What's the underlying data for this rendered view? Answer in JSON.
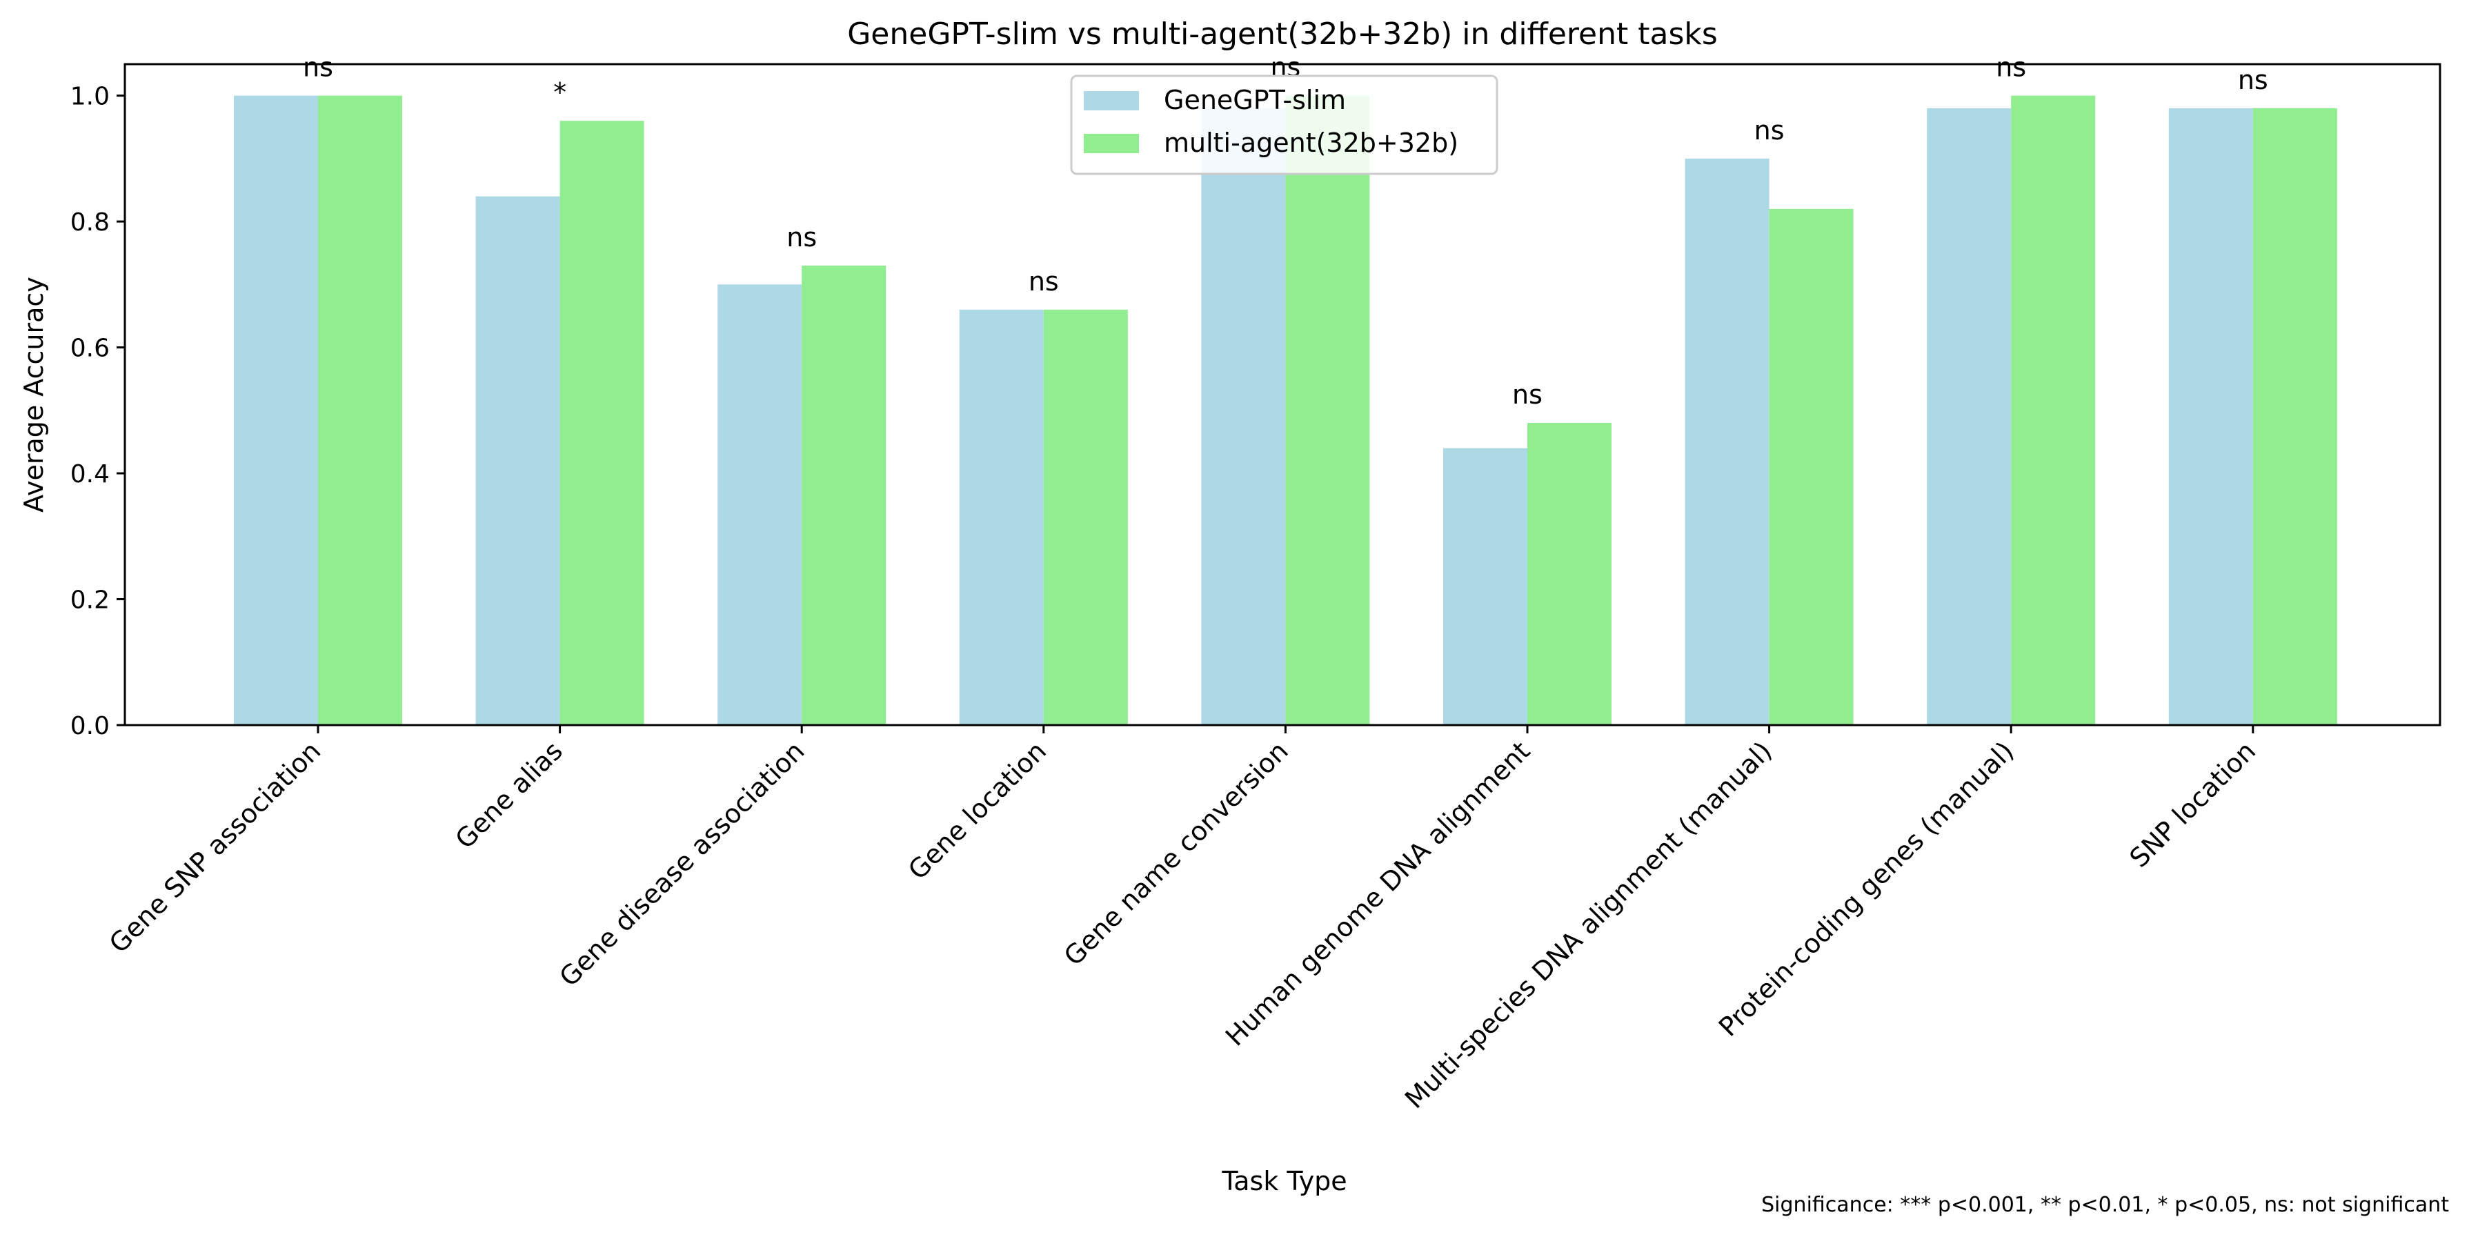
{
  "chart_data": {
    "type": "bar",
    "title": "GeneGPT-slim vs multi-agent(32b+32b) in different tasks",
    "xlabel": "Task Type",
    "ylabel": "Average Accuracy",
    "ylim": [
      0,
      1.05
    ],
    "yticks": [
      "0.0",
      "0.2",
      "0.4",
      "0.6",
      "0.8",
      "1.0"
    ],
    "grid": false,
    "legend_position": "top-center",
    "categories": [
      "Gene SNP association",
      "Gene alias",
      "Gene disease association",
      "Gene location",
      "Gene name conversion",
      "Human genome DNA alignment",
      "Multi-species DNA alignment (manual)",
      "Protein-coding genes (manual)",
      "SNP location"
    ],
    "series": [
      {
        "name": "GeneGPT-slim",
        "color": "#add8e6",
        "values": [
          1.0,
          0.84,
          0.7,
          0.66,
          0.98,
          0.44,
          0.9,
          0.98,
          0.98
        ]
      },
      {
        "name": "multi-agent(32b+32b)",
        "color": "#90ee90",
        "values": [
          1.0,
          0.96,
          0.73,
          0.66,
          1.0,
          0.48,
          0.82,
          1.0,
          0.98
        ]
      }
    ],
    "annotations": [
      "ns",
      "*",
      "ns",
      "ns",
      "ns",
      "ns",
      "ns",
      "ns",
      "ns"
    ],
    "footnote": "Significance: *** p<0.001, ** p<0.01, * p<0.05, ns: not significant"
  }
}
